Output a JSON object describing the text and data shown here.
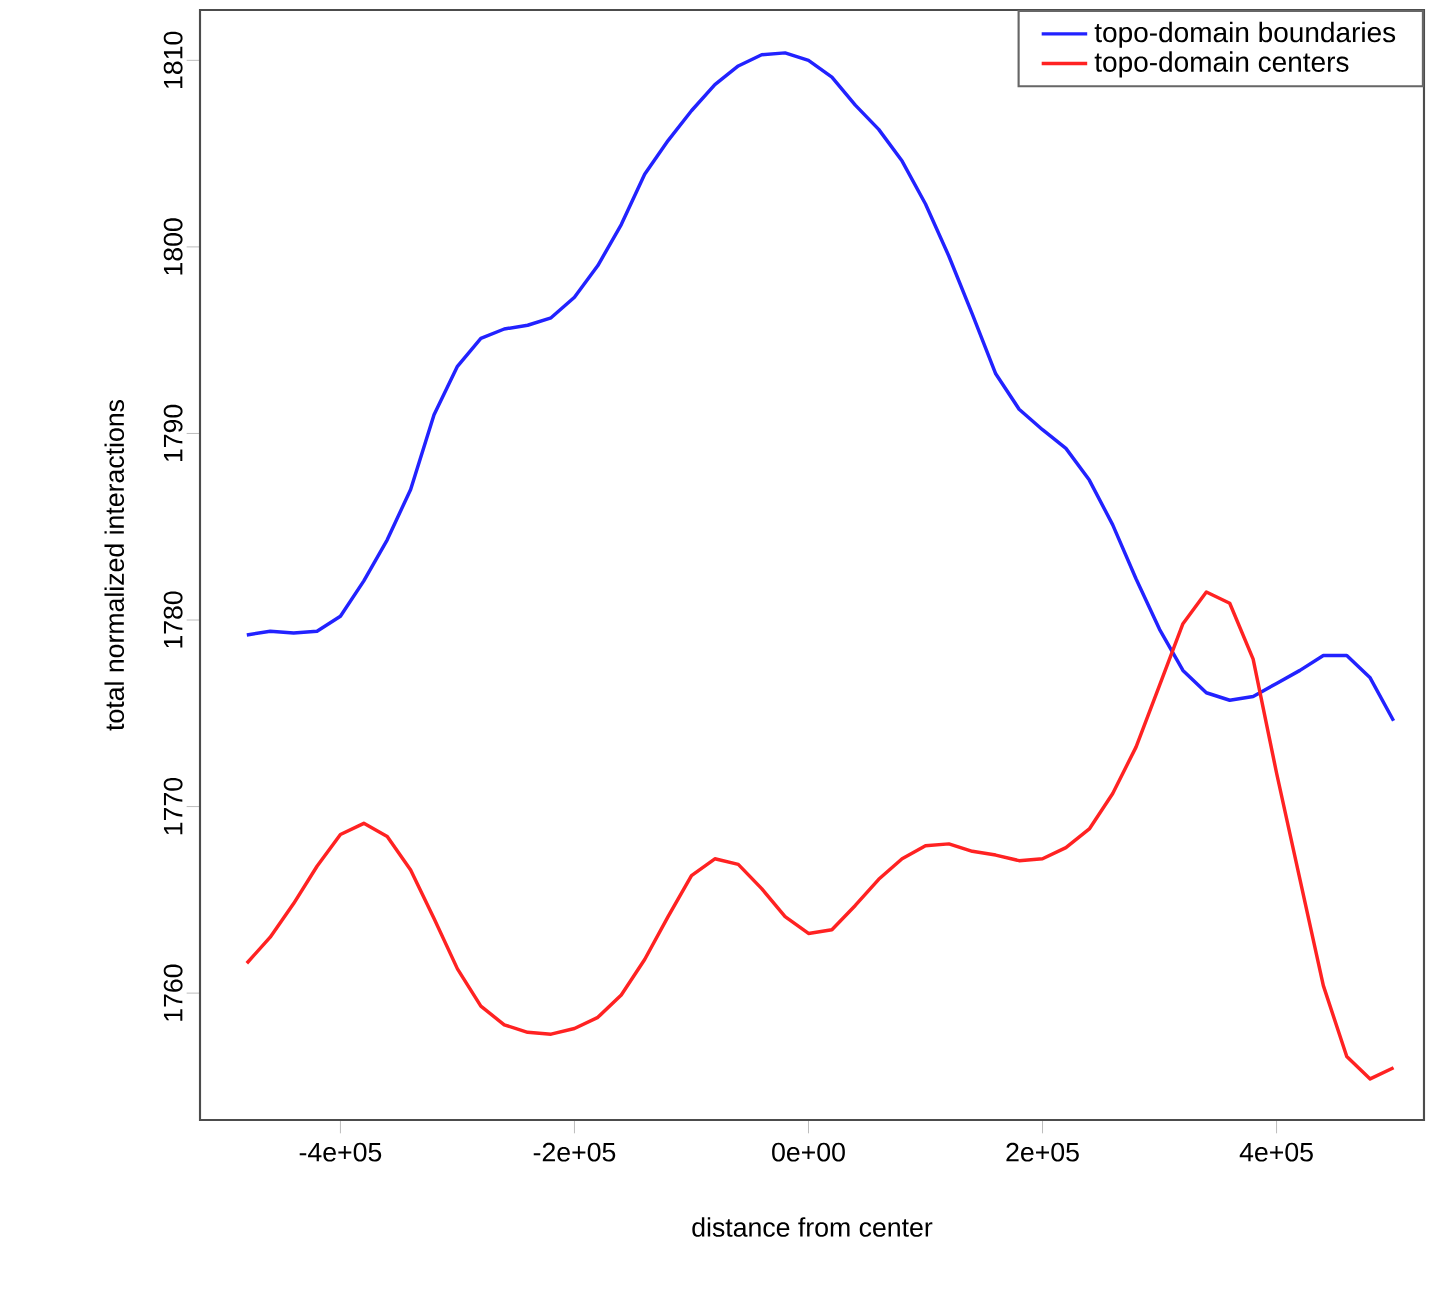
{
  "chart_data": {
    "type": "line",
    "xlabel": "distance from center",
    "ylabel": "total normalized interactions",
    "x": [
      -480000,
      -460000,
      -440000,
      -420000,
      -400000,
      -380000,
      -360000,
      -340000,
      -320000,
      -300000,
      -280000,
      -260000,
      -240000,
      -220000,
      -200000,
      -180000,
      -160000,
      -140000,
      -120000,
      -100000,
      -80000,
      -60000,
      -40000,
      -20000,
      0,
      20000,
      40000,
      60000,
      80000,
      100000,
      120000,
      140000,
      160000,
      180000,
      200000,
      220000,
      240000,
      260000,
      280000,
      300000,
      320000,
      340000,
      360000,
      380000,
      400000,
      420000,
      440000,
      460000,
      480000,
      500000
    ],
    "series": [
      {
        "name": "topo-domain boundaries",
        "color": "#2222ff",
        "values": [
          1779.2,
          1779.4,
          1779.3,
          1779.4,
          1780.2,
          1782.1,
          1784.3,
          1787.0,
          1791.0,
          1793.6,
          1795.1,
          1795.6,
          1795.8,
          1796.2,
          1797.3,
          1799.0,
          1801.2,
          1803.9,
          1805.7,
          1807.3,
          1808.7,
          1809.7,
          1810.3,
          1810.4,
          1810.0,
          1809.1,
          1807.6,
          1806.3,
          1804.6,
          1802.3,
          1799.5,
          1796.4,
          1793.2,
          1791.3,
          1790.2,
          1789.2,
          1787.5,
          1785.1,
          1782.2,
          1779.5,
          1777.3,
          1776.1,
          1775.7,
          1775.9,
          1776.6,
          1777.3,
          1778.1,
          1778.1,
          1776.9,
          1774.6
        ]
      },
      {
        "name": "topo-domain centers",
        "color": "#ff2222",
        "values": [
          1761.6,
          1763.0,
          1764.8,
          1766.8,
          1768.5,
          1769.1,
          1768.4,
          1766.6,
          1764.0,
          1761.3,
          1759.3,
          1758.3,
          1757.9,
          1757.8,
          1758.1,
          1758.7,
          1759.9,
          1761.8,
          1764.1,
          1766.3,
          1767.2,
          1766.9,
          1765.6,
          1764.1,
          1763.2,
          1763.4,
          1764.7,
          1766.1,
          1767.2,
          1767.9,
          1768.0,
          1767.6,
          1767.4,
          1767.1,
          1767.2,
          1767.8,
          1768.8,
          1770.7,
          1773.2,
          1776.5,
          1779.8,
          1781.5,
          1780.9,
          1777.9,
          1771.8,
          1766.1,
          1760.4,
          1756.6,
          1755.4,
          1756.0
        ]
      }
    ],
    "xlim": [
      -520000,
      526000
    ],
    "ylim": [
      1753.2,
      1812.7
    ],
    "xticks": [
      {
        "value": -400000,
        "label": "-4e+05"
      },
      {
        "value": -200000,
        "label": "-2e+05"
      },
      {
        "value": 0,
        "label": "0e+00"
      },
      {
        "value": 200000,
        "label": "2e+05"
      },
      {
        "value": 400000,
        "label": "4e+05"
      }
    ],
    "yticks": [
      1760,
      1770,
      1780,
      1790,
      1800,
      1810
    ],
    "legend": "top right",
    "grid": false,
    "line_style": "solid",
    "marker": "none"
  }
}
